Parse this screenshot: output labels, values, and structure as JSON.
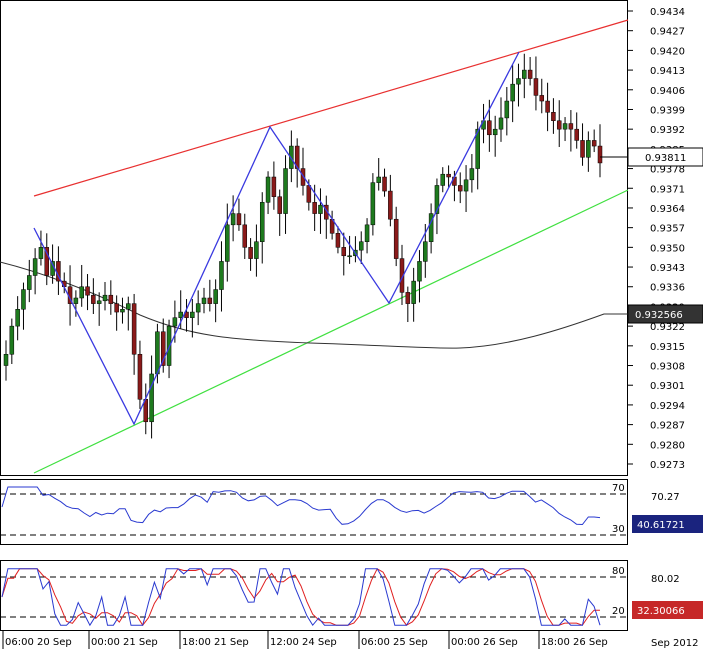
{
  "chart_data": {
    "type": "candlestick",
    "price_axis": {
      "ylim": [
        0.9266,
        0.9438
      ],
      "ticks": [
        "0.9434",
        "0.9427",
        "0.9420",
        "0.9413",
        "0.9406",
        "0.9399",
        "0.9392",
        "0.9385",
        "0.9378",
        "0.9371",
        "0.9364",
        "0.9357",
        "0.9350",
        "0.9343",
        "0.9336",
        "0.9329",
        "0.9322",
        "0.9315",
        "0.9308",
        "0.9301",
        "0.9294",
        "0.9287",
        "0.9280",
        "0.9273"
      ]
    },
    "time_axis": {
      "labels": [
        "06:00 20 Sep",
        "00:00 21 Sep",
        "18:00 21 Sep",
        "12:00 24 Sep",
        "06:00 25 Sep",
        "00:00 26 Sep",
        "18:00 26 Sep"
      ],
      "corner_label": "Sep 2012"
    },
    "last_price_tag": "0.93811",
    "ma_price_tag": "0.932566",
    "close_series": [
      0.9312,
      0.9322,
      0.9328,
      0.9335,
      0.934,
      0.9346,
      0.935,
      0.934,
      0.9345,
      0.9338,
      0.9336,
      0.933,
      0.9332,
      0.9336,
      0.9333,
      0.933,
      0.9331,
      0.9333,
      0.933,
      0.9327,
      0.9328,
      0.933,
      0.9312,
      0.9296,
      0.9288,
      0.9305,
      0.932,
      0.9308,
      0.9322,
      0.9325,
      0.9327,
      0.9325,
      0.9327,
      0.933,
      0.9332,
      0.933,
      0.9335,
      0.9345,
      0.9358,
      0.9362,
      0.9358,
      0.935,
      0.9346,
      0.9352,
      0.9366,
      0.9375,
      0.9368,
      0.9362,
      0.9378,
      0.9386,
      0.9378,
      0.9372,
      0.9366,
      0.9362,
      0.9365,
      0.936,
      0.9355,
      0.935,
      0.9347,
      0.9347,
      0.9349,
      0.9352,
      0.9358,
      0.9373,
      0.9375,
      0.937,
      0.936,
      0.9346,
      0.9334,
      0.933,
      0.9338,
      0.9345,
      0.9352,
      0.9362,
      0.9372,
      0.9376,
      0.9375,
      0.9372,
      0.937,
      0.9374,
      0.9378,
      0.9392,
      0.9395,
      0.939,
      0.9392,
      0.9396,
      0.9402,
      0.9408,
      0.941,
      0.9413,
      0.941,
      0.9404,
      0.9402,
      0.9398,
      0.9395,
      0.9392,
      0.9394,
      0.9392,
      0.9388,
      0.9382,
      0.9388,
      0.9386,
      0.938
    ],
    "swing_points": [
      0.9356,
      0.9286,
      0.9392,
      0.9331,
      0.9419
    ],
    "rsi": {
      "label_level_high": "70",
      "label_level_low": "30",
      "scale_label": "70.27",
      "value": "40.61721",
      "line_color": "#2a3ad0"
    },
    "stochastic": {
      "label_level_high": "80",
      "label_level_low": "20",
      "scale_label": "80.02",
      "value": "32.30066",
      "main_color": "#2a3ad0",
      "signal_color": "#e02020"
    },
    "colors": {
      "bull": "#1e7a1e",
      "bear": "#8a1a1a",
      "upper_channel": "#e83030",
      "lower_channel": "#40e040",
      "zigzag": "#3a3ae0",
      "moving_average": "#222222"
    }
  }
}
